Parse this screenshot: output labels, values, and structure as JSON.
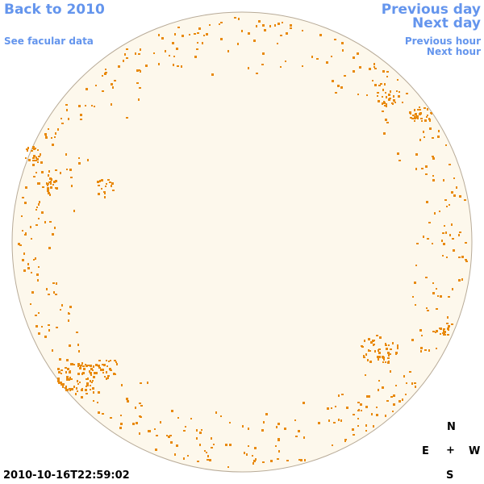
{
  "nav": {
    "back": "Back to 2010",
    "facular": "See facular data",
    "prev_day": "Previous day",
    "next_day": "Next day",
    "prev_hour": "Previous hour",
    "next_hour": "Next hour"
  },
  "compass": {
    "north": "N",
    "east": "E",
    "center": "+",
    "west": "W",
    "south": "S"
  },
  "timestamp": "2010-10-16T22:59:02",
  "colors": {
    "disk_fill": "#fdf8ec",
    "disk_edge": "#b8ab98",
    "facula": "#e8890c",
    "link": "#6495ed"
  }
}
